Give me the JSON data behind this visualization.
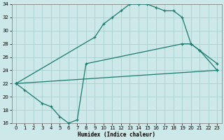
{
  "xlabel": "Humidex (Indice chaleur)",
  "ylabel": "",
  "bg_color": "#cce8e8",
  "line_color": "#1a7a6e",
  "grid_color": "#aacece",
  "xlim": [
    -0.5,
    23.5
  ],
  "ylim": [
    16,
    34
  ],
  "xticks": [
    0,
    1,
    2,
    3,
    4,
    5,
    6,
    7,
    8,
    9,
    10,
    11,
    12,
    13,
    14,
    15,
    16,
    17,
    18,
    19,
    20,
    21,
    22,
    23
  ],
  "yticks": [
    16,
    18,
    20,
    22,
    24,
    26,
    28,
    30,
    32,
    34
  ],
  "curve1_x": [
    0,
    9,
    10,
    11,
    12,
    13,
    14,
    15,
    16,
    17,
    18,
    19,
    20,
    21,
    23
  ],
  "curve1_y": [
    22,
    29,
    31,
    32,
    33,
    34,
    34,
    34,
    33.5,
    33,
    33,
    32,
    28,
    27,
    24
  ],
  "curve2_x": [
    0,
    1,
    3,
    4,
    5,
    6,
    7,
    8,
    19,
    20,
    21,
    23
  ],
  "curve2_y": [
    22,
    21,
    19,
    18.5,
    17,
    16,
    16.5,
    25,
    28,
    28,
    27,
    25
  ],
  "curve3_x": [
    0,
    23
  ],
  "curve3_y": [
    22,
    24
  ]
}
